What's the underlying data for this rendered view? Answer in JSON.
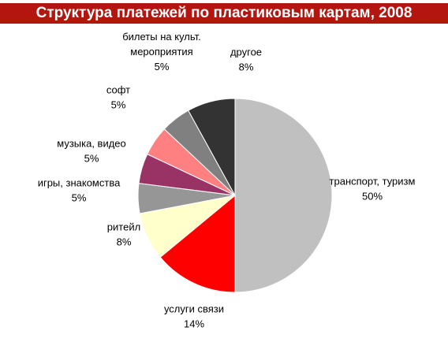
{
  "chart_data": {
    "type": "pie",
    "title": "Структура платежей по пластиковым картам, 2008",
    "start_angle_deg": 0,
    "direction": "clockwise",
    "slices": [
      {
        "label": [
          "транспорт, туризм"
        ],
        "value": 50,
        "value_label": "50%",
        "color": "#c0c0c0"
      },
      {
        "label": [
          "услуги связи"
        ],
        "value": 14,
        "value_label": "14%",
        "color": "#ff0000"
      },
      {
        "label": [
          "ритейл"
        ],
        "value": 8,
        "value_label": "8%",
        "color": "#ffffcc"
      },
      {
        "label": [
          "игры, знакомства"
        ],
        "value": 5,
        "value_label": "5%",
        "color": "#969696"
      },
      {
        "label": [
          "музыка, видео"
        ],
        "value": 5,
        "value_label": "5%",
        "color": "#993366"
      },
      {
        "label": [
          "софт"
        ],
        "value": 5,
        "value_label": "5%",
        "color": "#ff8080"
      },
      {
        "label": [
          "билеты на культ.",
          "мероприятия"
        ],
        "value": 5,
        "value_label": "5%",
        "color": "#808080"
      },
      {
        "label": [
          "другое"
        ],
        "value": 8,
        "value_label": "8%",
        "color": "#333333"
      }
    ],
    "legend": "none"
  },
  "colors": {
    "title_bar": "#b3160e",
    "title_text": "#ffffff",
    "slice_border": "#ffffff"
  }
}
